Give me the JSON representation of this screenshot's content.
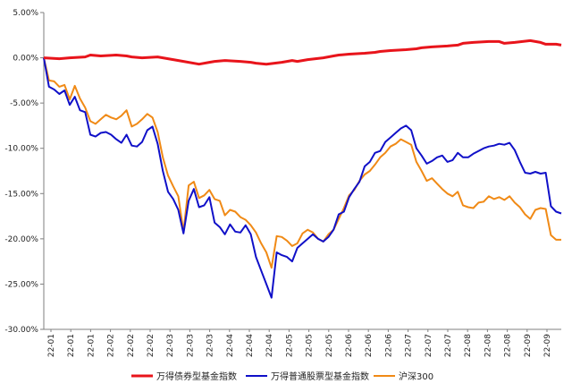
{
  "chart_data": {
    "type": "line",
    "title": "",
    "xlabel": "",
    "ylabel": "",
    "ylim": [
      -30,
      5
    ],
    "y_ticks": [
      "5.00%",
      "0.00%",
      "-5.00%",
      "-10.00%",
      "-15.00%",
      "-20.00%",
      "-25.00%",
      "-30.00%"
    ],
    "y_tick_values": [
      5,
      0,
      -5,
      -10,
      -15,
      -20,
      -25,
      -30
    ],
    "x_tick_labels": [
      "22-01",
      "22-01",
      "22-01",
      "22-02",
      "22-02",
      "22-02",
      "22-03",
      "22-03",
      "22-03",
      "22-04",
      "22-04",
      "22-04",
      "22-05",
      "22-05",
      "22-05",
      "22-06",
      "22-06",
      "22-06",
      "22-07",
      "22-07",
      "22-07",
      "22-08",
      "22-08",
      "22-08",
      "22-09",
      "22-09"
    ],
    "grid": false,
    "legend_position": "bottom",
    "series": [
      {
        "name": "万得债券型基金指数",
        "color": "#e8141b",
        "x": [
          0,
          3,
          5,
          8,
          9,
          11,
          14,
          16,
          17,
          19,
          22,
          24,
          25,
          27,
          30,
          32,
          33,
          35,
          38,
          40,
          41,
          43,
          46,
          48,
          49,
          51,
          54,
          56,
          57,
          59,
          62,
          64,
          65,
          67,
          70,
          72,
          73,
          75,
          78,
          80,
          81,
          83,
          86,
          88,
          89,
          91,
          94,
          96,
          97,
          99,
          100
        ],
        "values": [
          0,
          -0.1,
          0,
          0.1,
          0.3,
          0.2,
          0.3,
          0.2,
          0.1,
          0,
          0.1,
          -0.1,
          -0.2,
          -0.4,
          -0.7,
          -0.5,
          -0.4,
          -0.3,
          -0.4,
          -0.5,
          -0.6,
          -0.7,
          -0.5,
          -0.3,
          -0.4,
          -0.2,
          0,
          0.2,
          0.3,
          0.4,
          0.5,
          0.6,
          0.7,
          0.8,
          0.9,
          1,
          1.1,
          1.2,
          1.3,
          1.4,
          1.6,
          1.7,
          1.8,
          1.8,
          1.6,
          1.7,
          1.9,
          1.7,
          1.5,
          1.5,
          1.4
        ]
      },
      {
        "name": "万得普通股票型基金指数",
        "color": "#1010c8",
        "x": [
          0,
          1,
          2,
          3,
          4,
          5,
          6,
          7,
          8,
          9,
          10,
          11,
          12,
          13,
          14,
          15,
          16,
          17,
          18,
          19,
          20,
          21,
          22,
          23,
          24,
          25,
          26,
          27,
          28,
          29,
          30,
          31,
          32,
          33,
          34,
          35,
          36,
          37,
          38,
          39,
          40,
          41,
          42,
          43,
          44,
          45,
          46,
          47,
          48,
          49,
          50,
          51,
          52,
          53,
          54,
          55,
          56,
          57,
          58,
          59,
          60,
          61,
          62,
          63,
          64,
          65,
          66,
          67,
          68,
          69,
          70,
          71,
          72,
          73,
          74,
          75,
          76,
          77,
          78,
          79,
          80,
          81,
          82,
          83,
          84,
          85,
          86,
          87,
          88,
          89,
          90,
          91,
          92,
          93,
          94,
          95,
          96,
          97,
          98,
          99,
          100
        ],
        "values": [
          0,
          -3.2,
          -3.5,
          -4,
          -3.6,
          -5.2,
          -4.3,
          -5.8,
          -6,
          -8.5,
          -8.7,
          -8.3,
          -8.2,
          -8.5,
          -9,
          -9.4,
          -8.5,
          -9.7,
          -9.8,
          -9.3,
          -8,
          -7.6,
          -9.5,
          -12.5,
          -14.8,
          -15.6,
          -16.8,
          -19.4,
          -15.8,
          -14.5,
          -16.5,
          -16.3,
          -15.4,
          -18.2,
          -18.7,
          -19.5,
          -18.4,
          -19.2,
          -19.3,
          -18.5,
          -19.5,
          -22,
          -23.5,
          -25,
          -26.5,
          -21.5,
          -21.8,
          -22,
          -22.5,
          -21,
          -20.5,
          -20,
          -19.5,
          -20,
          -20.3,
          -19.8,
          -19,
          -17.3,
          -17,
          -15.4,
          -14.5,
          -13.7,
          -12,
          -11.5,
          -10.5,
          -10.3,
          -9.3,
          -8.8,
          -8.3,
          -7.8,
          -7.5,
          -8,
          -10,
          -10.8,
          -11.7,
          -11.4,
          -11,
          -10.8,
          -11.5,
          -11.3,
          -10.5,
          -11,
          -11,
          -10.6,
          -10.3,
          -10,
          -9.8,
          -9.7,
          -9.5,
          -9.6,
          -9.4,
          -10.2,
          -11.5,
          -12.7,
          -12.8,
          -12.6,
          -12.8,
          -12.7,
          -16.4,
          -17,
          -17.2
        ]
      },
      {
        "name": "沪深300",
        "color": "#f08a16",
        "x": [
          0,
          1,
          2,
          3,
          4,
          5,
          6,
          7,
          8,
          9,
          10,
          11,
          12,
          13,
          14,
          15,
          16,
          17,
          18,
          19,
          20,
          21,
          22,
          23,
          24,
          25,
          26,
          27,
          28,
          29,
          30,
          31,
          32,
          33,
          34,
          35,
          36,
          37,
          38,
          39,
          40,
          41,
          42,
          43,
          44,
          45,
          46,
          47,
          48,
          49,
          50,
          51,
          52,
          53,
          54,
          55,
          56,
          57,
          58,
          59,
          60,
          61,
          62,
          63,
          64,
          65,
          66,
          67,
          68,
          69,
          70,
          71,
          72,
          73,
          74,
          75,
          76,
          77,
          78,
          79,
          80,
          81,
          82,
          83,
          84,
          85,
          86,
          87,
          88,
          89,
          90,
          91,
          92,
          93,
          94,
          95,
          96,
          97,
          98,
          99,
          100
        ],
        "values": [
          0,
          -2.5,
          -2.6,
          -3.2,
          -3,
          -4.6,
          -3.1,
          -4.5,
          -5.5,
          -7,
          -7.3,
          -6.8,
          -6.3,
          -6.6,
          -6.8,
          -6.4,
          -5.8,
          -7.6,
          -7.3,
          -6.8,
          -6.2,
          -6.6,
          -8.2,
          -11,
          -13,
          -14.2,
          -15.3,
          -19.2,
          -14.1,
          -13.7,
          -15.5,
          -15.2,
          -14.6,
          -15.6,
          -15.8,
          -17.4,
          -16.8,
          -17,
          -17.6,
          -17.9,
          -18.5,
          -19.3,
          -20.5,
          -21.5,
          -23.2,
          -19.7,
          -19.8,
          -20.2,
          -20.8,
          -20.5,
          -19.4,
          -19,
          -19.3,
          -20,
          -20.3,
          -19.5,
          -19,
          -17.8,
          -16.6,
          -15.2,
          -14.6,
          -13.6,
          -12.9,
          -12.5,
          -11.8,
          -11,
          -10.5,
          -9.8,
          -9.5,
          -9,
          -9.3,
          -9.6,
          -11.5,
          -12.5,
          -13.6,
          -13.3,
          -13.9,
          -14.5,
          -15,
          -15.3,
          -14.8,
          -16.3,
          -16.5,
          -16.6,
          -16,
          -15.9,
          -15.3,
          -15.6,
          -15.4,
          -15.7,
          -15.3,
          -16,
          -16.5,
          -17.3,
          -17.8,
          -16.8,
          -16.6,
          -16.7,
          -19.6,
          -20.1,
          -20.1
        ]
      }
    ]
  },
  "colors": {
    "axis": "#7f7f7f",
    "text": "#222222"
  }
}
